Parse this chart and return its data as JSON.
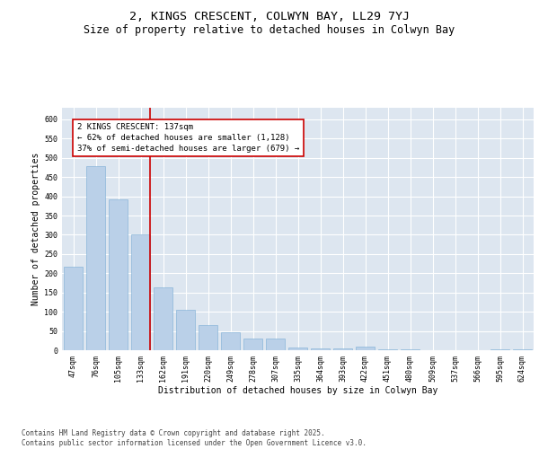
{
  "title_line1": "2, KINGS CRESCENT, COLWYN BAY, LL29 7YJ",
  "title_line2": "Size of property relative to detached houses in Colwyn Bay",
  "xlabel": "Distribution of detached houses by size in Colwyn Bay",
  "ylabel": "Number of detached properties",
  "categories": [
    "47sqm",
    "76sqm",
    "105sqm",
    "133sqm",
    "162sqm",
    "191sqm",
    "220sqm",
    "249sqm",
    "278sqm",
    "307sqm",
    "335sqm",
    "364sqm",
    "393sqm",
    "422sqm",
    "451sqm",
    "480sqm",
    "509sqm",
    "537sqm",
    "566sqm",
    "595sqm",
    "624sqm"
  ],
  "values": [
    218,
    478,
    393,
    302,
    163,
    105,
    65,
    46,
    30,
    30,
    8,
    5,
    5,
    10,
    3,
    2,
    1,
    1,
    0,
    3,
    2
  ],
  "bar_color": "#bad0e8",
  "bar_edge_color": "#7aadd4",
  "marker_index": 3,
  "marker_color": "#cc0000",
  "annotation_text": "2 KINGS CRESCENT: 137sqm\n← 62% of detached houses are smaller (1,128)\n37% of semi-detached houses are larger (679) →",
  "annotation_box_color": "#cc0000",
  "ylim": [
    0,
    630
  ],
  "yticks": [
    0,
    50,
    100,
    150,
    200,
    250,
    300,
    350,
    400,
    450,
    500,
    550,
    600
  ],
  "background_color": "#dde6f0",
  "grid_color": "#ffffff",
  "footer_text": "Contains HM Land Registry data © Crown copyright and database right 2025.\nContains public sector information licensed under the Open Government Licence v3.0.",
  "title_fontsize": 9.5,
  "subtitle_fontsize": 8.5,
  "annotation_fontsize": 6.5,
  "axis_label_fontsize": 7,
  "tick_fontsize": 6,
  "footer_fontsize": 5.5
}
